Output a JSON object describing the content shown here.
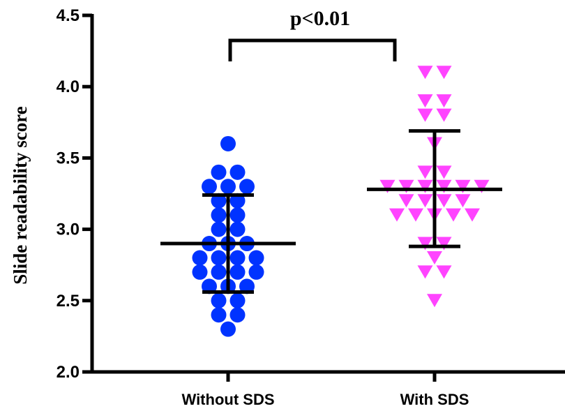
{
  "chart_data": {
    "type": "scatter",
    "ylabel": "Slide readability score",
    "ylim": [
      2.0,
      4.5
    ],
    "yticks": [
      "2.0",
      "2.5",
      "3.0",
      "3.5",
      "4.0",
      "4.5"
    ],
    "categories": [
      "Without SDS",
      "With SDS"
    ],
    "colors": {
      "without_sds": "#0033ff",
      "with_sds": "#ff44ff",
      "axis": "#000000"
    },
    "markers": {
      "without_sds": "circle",
      "with_sds": "triangle-down"
    },
    "annotation": "p<0.01",
    "series": [
      {
        "values": [
          3.6,
          3.4,
          3.4,
          3.3,
          3.3,
          3.3,
          3.2,
          3.2,
          3.1,
          3.1,
          3.0,
          3.0,
          2.9,
          2.9,
          2.9,
          2.8,
          2.8,
          2.8,
          2.8,
          2.7,
          2.7,
          2.7,
          2.7,
          2.6,
          2.6,
          2.6,
          2.5,
          2.5,
          2.4,
          2.4,
          2.3
        ],
        "mean": 2.9,
        "sd_upper": 3.24,
        "sd_lower": 2.56
      },
      {
        "values": [
          4.1,
          4.1,
          3.9,
          3.9,
          3.8,
          3.8,
          3.6,
          3.4,
          3.4,
          3.3,
          3.3,
          3.3,
          3.3,
          3.3,
          3.3,
          3.2,
          3.2,
          3.2,
          3.2,
          3.1,
          3.1,
          3.1,
          3.1,
          3.1,
          2.9,
          2.9,
          2.8,
          2.7,
          2.7,
          2.5
        ],
        "mean": 3.28,
        "sd_upper": 3.69,
        "sd_lower": 2.88
      }
    ]
  }
}
